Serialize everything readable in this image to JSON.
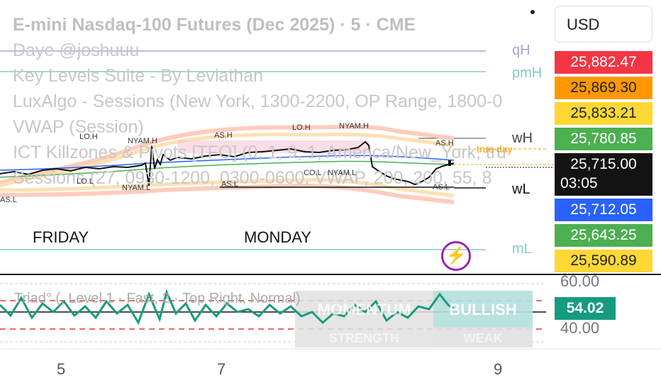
{
  "legend": {
    "title": "E-mini Nasdaq-100 Futures (Dec 2025) · 5 · CME",
    "lines": [
      "Daye @joshuuu",
      "Key Levels Suite - By Leviathan",
      "LuxAlgo - Sessions (New York, 1300-2200, OP Range, 1800-0",
      "VWAP (Session)",
      "ICT Killzones & Pivots [TFO] (0, 1, 9, 1, America/New_York, tru",
      "Sessions (27, 0930-1200, 0300-0600, VWAP, 200, 200, 55, 8"
    ]
  },
  "currency": "USD",
  "price_tags": [
    {
      "value": "25,882.47",
      "color": "#f23645"
    },
    {
      "value": "25,869.30",
      "color": "#ff9800"
    },
    {
      "value": "25,833.21",
      "color": "#fdd835"
    },
    {
      "value": "25,780.85",
      "color": "#4caf50"
    },
    {
      "value": "25,715.00",
      "sub": "03:05",
      "color": "#131313"
    },
    {
      "value": "25,712.05",
      "color": "#2962ff"
    },
    {
      "value": "25,643.25",
      "color": "#4caf50"
    },
    {
      "value": "25,590.89",
      "color": "#fdd835"
    }
  ],
  "levels": {
    "qH": "qH",
    "pmH": "pmH",
    "wH": "wH",
    "wL": "wL",
    "mL": "mL",
    "true_day": "true day"
  },
  "session_labels": [
    "LO.H",
    "NYAM.H",
    "AS.H",
    "LO.H",
    "NYAM.H",
    "AS.H",
    "LO.L",
    "NYAM.L",
    "AS.L",
    "AS.L",
    "CO.L",
    "NYAM.L",
    "AS.L"
  ],
  "days": {
    "friday": "FRIDAY",
    "monday": "MONDAY"
  },
  "time_axis": [
    "5",
    "7",
    "9"
  ],
  "oscillator": {
    "label": "Triad° (, Level 1 · Fast, 2 · Top Right, Normal)",
    "value": "54.02",
    "ticks": [
      "60.00",
      "40.00"
    ],
    "table": {
      "momentum": "MOMENTUM",
      "bullish": "BULLISH",
      "strength": "STRENGTH",
      "weak": "WEAK"
    }
  }
}
